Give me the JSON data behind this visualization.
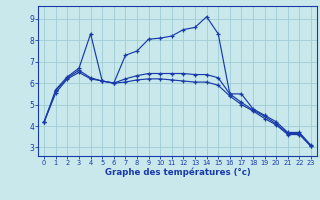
{
  "title": "Graphe des températures (°c)",
  "bg_color": "#c8e8ec",
  "grid_color": "#a0ccd4",
  "line_color": "#1a3aaa",
  "y_ticks": [
    3,
    4,
    5,
    6,
    7,
    8,
    9
  ],
  "ylim": [
    2.6,
    9.6
  ],
  "xlim": [
    -0.5,
    23.5
  ],
  "series1": [
    4.2,
    5.7,
    6.3,
    6.7,
    8.3,
    6.1,
    6.0,
    7.3,
    7.5,
    8.05,
    8.1,
    8.2,
    8.5,
    8.6,
    9.1,
    8.3,
    5.5,
    5.5,
    4.8,
    4.5,
    4.2,
    3.7,
    3.7,
    3.1
  ],
  "series2": [
    4.2,
    5.65,
    6.25,
    6.6,
    6.25,
    6.1,
    6.0,
    6.2,
    6.35,
    6.45,
    6.45,
    6.45,
    6.45,
    6.4,
    6.4,
    6.25,
    5.5,
    5.1,
    4.75,
    4.45,
    4.1,
    3.65,
    3.65,
    3.05
  ],
  "series3": [
    4.2,
    5.55,
    6.2,
    6.5,
    6.2,
    6.1,
    6.0,
    6.05,
    6.15,
    6.2,
    6.2,
    6.15,
    6.1,
    6.05,
    6.05,
    5.9,
    5.4,
    5.0,
    4.7,
    4.35,
    4.05,
    3.6,
    3.6,
    3.05
  ]
}
